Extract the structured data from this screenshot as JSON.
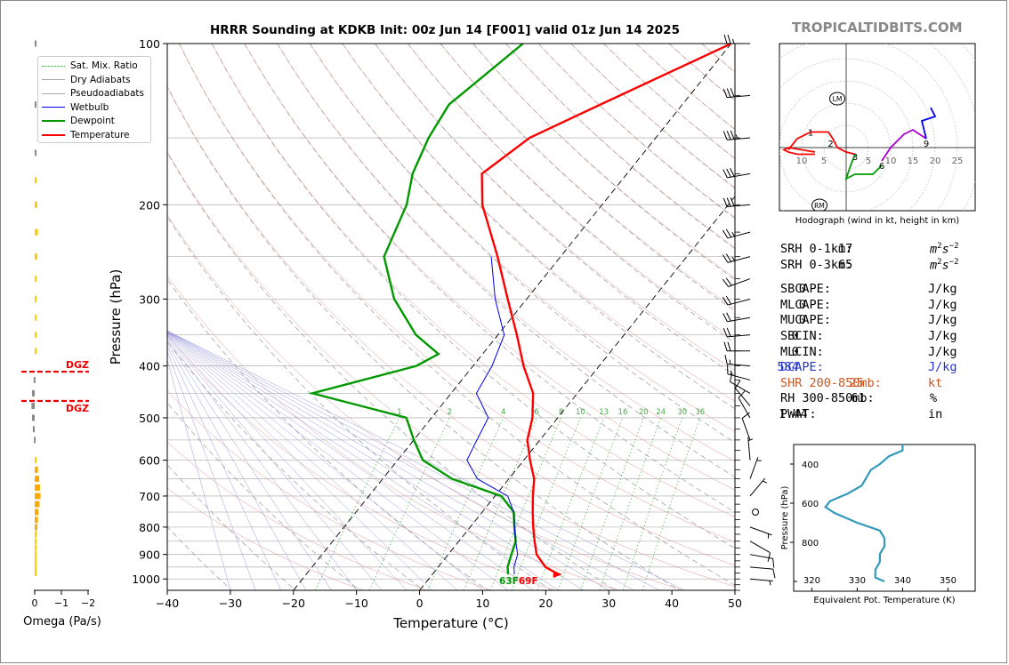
{
  "title": "HRRR Sounding at KDKB Init: 00z Jun 14 [F001] valid 01z Jun 14 2025",
  "brand": "TROPICALTIDBITS.COM",
  "chart_data": [
    {
      "type": "line",
      "name": "skewt",
      "xlabel": "Temperature (°C)",
      "ylabel": "Pressure (hPa)",
      "xlim": [
        -40,
        50
      ],
      "ylim": [
        1050,
        100
      ],
      "y_scale": "log",
      "skew": true,
      "x_ticks": [
        -40,
        -30,
        -20,
        -10,
        0,
        10,
        20,
        30,
        40,
        50
      ],
      "x_tick_labels": [
        "−40",
        "−30",
        "−20",
        "−10",
        "0",
        "10",
        "20",
        "30",
        "40",
        "50"
      ],
      "y_ticks": [
        100,
        200,
        300,
        400,
        500,
        600,
        700,
        800,
        900,
        1000
      ],
      "legend": [
        "Sat. Mix. Ratio",
        "Dry Adiabats",
        "Pseudoadiabats",
        "Wetbulb",
        "Dewpoint",
        "Temperature"
      ],
      "legend_position": "upper-left",
      "mixing_ratio_labels": [
        "1",
        "2",
        "4",
        "6",
        "8",
        "10",
        "13",
        "16",
        "20",
        "24",
        "30",
        "36"
      ],
      "surface_label": "63F69F",
      "series": [
        {
          "name": "Temperature",
          "color": "#ff0000",
          "points": [
            [
              100,
              -20
            ],
            [
              130,
              -33
            ],
            [
              150,
              -40
            ],
            [
              175,
              -43
            ],
            [
              200,
              -39
            ],
            [
              250,
              -30
            ],
            [
              300,
              -23
            ],
            [
              350,
              -17
            ],
            [
              400,
              -12
            ],
            [
              450,
              -7
            ],
            [
              500,
              -4
            ],
            [
              550,
              -2
            ],
            [
              600,
              1
            ],
            [
              650,
              4
            ],
            [
              700,
              6
            ],
            [
              750,
              8
            ],
            [
              800,
              10
            ],
            [
              850,
              12
            ],
            [
              900,
              14
            ],
            [
              950,
              17
            ],
            [
              980,
              20
            ]
          ]
        },
        {
          "name": "Dewpoint",
          "color": "#009900",
          "points": [
            [
              100,
              -53
            ],
            [
              130,
              -57
            ],
            [
              150,
              -56
            ],
            [
              175,
              -54
            ],
            [
              200,
              -51
            ],
            [
              250,
              -48
            ],
            [
              300,
              -41
            ],
            [
              350,
              -33
            ],
            [
              380,
              -27
            ],
            [
              400,
              -29
            ],
            [
              450,
              -42
            ],
            [
              500,
              -24
            ],
            [
              550,
              -20
            ],
            [
              600,
              -16
            ],
            [
              650,
              -9
            ],
            [
              700,
              1
            ],
            [
              750,
              5
            ],
            [
              800,
              7
            ],
            [
              850,
              9
            ],
            [
              900,
              10
            ],
            [
              950,
              11
            ],
            [
              980,
              12
            ]
          ]
        },
        {
          "name": "Wetbulb",
          "color": "#0000ee",
          "points": [
            [
              250,
              -31
            ],
            [
              300,
              -25
            ],
            [
              350,
              -19
            ],
            [
              400,
              -17
            ],
            [
              450,
              -16
            ],
            [
              500,
              -11
            ],
            [
              550,
              -10
            ],
            [
              600,
              -9
            ],
            [
              650,
              -5
            ],
            [
              700,
              2
            ],
            [
              750,
              5
            ],
            [
              800,
              7
            ],
            [
              850,
              9
            ],
            [
              900,
              11
            ],
            [
              950,
              12
            ],
            [
              980,
              13
            ]
          ]
        }
      ]
    },
    {
      "type": "bar",
      "name": "omega",
      "xlabel": "Omega (Pa/s)",
      "x_ticks": [
        0,
        -1,
        -2
      ],
      "x_tick_labels": [
        "0",
        "−1",
        "−2"
      ],
      "dgz_label": "DGZ",
      "dgz": [
        410,
        465
      ],
      "bars": [
        {
          "p": 100,
          "omega": -0.03,
          "color": "#888888"
        },
        {
          "p": 130,
          "omega": -0.05,
          "color": "#888888"
        },
        {
          "p": 160,
          "omega": -0.05,
          "color": "#888888"
        },
        {
          "p": 180,
          "omega": -0.02,
          "color": "#ffcc00"
        },
        {
          "p": 200,
          "omega": -0.1,
          "color": "#ffcc00"
        },
        {
          "p": 225,
          "omega": -0.12,
          "color": "#ffcc00"
        },
        {
          "p": 250,
          "omega": -0.1,
          "color": "#ffcc00"
        },
        {
          "p": 275,
          "omega": -0.07,
          "color": "#ffcc00"
        },
        {
          "p": 300,
          "omega": -0.04,
          "color": "#ffcc00"
        },
        {
          "p": 325,
          "omega": -0.02,
          "color": "#ffcc00"
        },
        {
          "p": 350,
          "omega": -0.03,
          "color": "#ffcc00"
        },
        {
          "p": 375,
          "omega": -0.05,
          "color": "#ffcc00"
        },
        {
          "p": 425,
          "omega": 0.04,
          "color": "#888888"
        },
        {
          "p": 450,
          "omega": 0.1,
          "color": "#888888"
        },
        {
          "p": 475,
          "omega": 0.12,
          "color": "#888888"
        },
        {
          "p": 500,
          "omega": 0.1,
          "color": "#888888"
        },
        {
          "p": 525,
          "omega": 0.07,
          "color": "#888888"
        },
        {
          "p": 550,
          "omega": 0.03,
          "color": "#888888"
        },
        {
          "p": 600,
          "omega": -0.06,
          "color": "#ffcc00"
        },
        {
          "p": 625,
          "omega": -0.12,
          "color": "#ffaa00"
        },
        {
          "p": 650,
          "omega": -0.17,
          "color": "#ffaa00"
        },
        {
          "p": 675,
          "omega": -0.2,
          "color": "#ffaa00"
        },
        {
          "p": 700,
          "omega": -0.22,
          "color": "#ffaa00"
        },
        {
          "p": 725,
          "omega": -0.18,
          "color": "#ffaa00"
        },
        {
          "p": 750,
          "omega": -0.14,
          "color": "#ffaa00"
        },
        {
          "p": 775,
          "omega": -0.12,
          "color": "#ffaa00"
        },
        {
          "p": 800,
          "omega": -0.1,
          "color": "#ffaa00"
        },
        {
          "p": 825,
          "omega": -0.08,
          "color": "#ffcc00"
        },
        {
          "p": 850,
          "omega": -0.07,
          "color": "#ffcc00"
        },
        {
          "p": 875,
          "omega": -0.05,
          "color": "#ffcc00"
        },
        {
          "p": 900,
          "omega": -0.04,
          "color": "#ffcc00"
        },
        {
          "p": 925,
          "omega": -0.03,
          "color": "#ffcc00"
        },
        {
          "p": 950,
          "omega": -0.02,
          "color": "#ffcc00"
        },
        {
          "p": 975,
          "omega": -0.01,
          "color": "#ffcc00"
        }
      ]
    },
    {
      "type": "line",
      "name": "hodograph",
      "xlabel": "Hodograph (wind in kt, height in km)",
      "ring_labels": [
        "10",
        "5",
        "5",
        "10",
        "15",
        "20",
        "25"
      ],
      "storm_motion_labels": [
        "LM",
        "RM"
      ],
      "storm_motion": {
        "LM": [
          -2,
          11
        ],
        "RM": [
          -6,
          -13
        ]
      },
      "height_labels": [
        {
          "km": "1",
          "u": -8,
          "v": 3.5
        },
        {
          "km": "2",
          "u": -3.5,
          "v": 1
        },
        {
          "km": "3",
          "u": 2,
          "v": -2
        },
        {
          "km": "6",
          "u": 8,
          "v": -4
        },
        {
          "km": "9",
          "u": 18,
          "v": 1
        }
      ],
      "segments": [
        {
          "color": "#ff0000",
          "points": [
            [
              -7,
              -1
            ],
            [
              -13,
              0
            ],
            [
              -14,
              -0.5
            ],
            [
              -13,
              -1
            ],
            [
              -11,
              -1.5
            ],
            [
              -7,
              -1.5
            ]
          ]
        },
        {
          "color": "#ff0000",
          "points": [
            [
              -13,
              -0.5
            ],
            [
              -11,
              2
            ],
            [
              -8,
              3.5
            ],
            [
              -4,
              3.5
            ],
            [
              -3,
              2
            ],
            [
              -2,
              0
            ],
            [
              0,
              -1
            ],
            [
              2,
              -1.5
            ]
          ]
        },
        {
          "color": "#009900",
          "points": [
            [
              2,
              -1.5
            ],
            [
              1,
              -4
            ],
            [
              0,
              -7
            ],
            [
              2,
              -6
            ],
            [
              6,
              -6
            ],
            [
              8,
              -4
            ]
          ]
        },
        {
          "color": "#aa00cc",
          "points": [
            [
              8,
              -3
            ],
            [
              10,
              0
            ],
            [
              13,
              3
            ],
            [
              15,
              4
            ],
            [
              18,
              2
            ]
          ]
        },
        {
          "color": "#0000ee",
          "points": [
            [
              18,
              2
            ],
            [
              17,
              6
            ],
            [
              20,
              7
            ],
            [
              19,
              9
            ]
          ]
        }
      ]
    },
    {
      "type": "line",
      "name": "theta_e",
      "xlabel": "Equivalent Pot. Temperature (K)",
      "ylabel": "Pressure (hPa)",
      "x_ticks": [
        320,
        330,
        340,
        350
      ],
      "y_ticks": [
        400,
        600,
        800
      ],
      "xlim": [
        316,
        356
      ],
      "ylim": [
        1050,
        300
      ],
      "color": "#3399bb",
      "points": [
        [
          300,
          340
        ],
        [
          330,
          340
        ],
        [
          360,
          337
        ],
        [
          400,
          335
        ],
        [
          430,
          333
        ],
        [
          470,
          332
        ],
        [
          510,
          331
        ],
        [
          550,
          328
        ],
        [
          590,
          324
        ],
        [
          620,
          323
        ],
        [
          650,
          325
        ],
        [
          700,
          330
        ],
        [
          740,
          335
        ],
        [
          780,
          336
        ],
        [
          820,
          336
        ],
        [
          860,
          335
        ],
        [
          900,
          335
        ],
        [
          940,
          334
        ],
        [
          980,
          334
        ],
        [
          1000,
          336
        ]
      ]
    }
  ],
  "wind_barbs": [
    {
      "p": 100,
      "speed": 25,
      "dir": 270
    },
    {
      "p": 125,
      "speed": 30,
      "dir": 265
    },
    {
      "p": 150,
      "speed": 35,
      "dir": 265
    },
    {
      "p": 175,
      "speed": 30,
      "dir": 260
    },
    {
      "p": 200,
      "speed": 30,
      "dir": 265
    },
    {
      "p": 225,
      "speed": 25,
      "dir": 255
    },
    {
      "p": 250,
      "speed": 25,
      "dir": 255
    },
    {
      "p": 275,
      "speed": 20,
      "dir": 250
    },
    {
      "p": 300,
      "speed": 20,
      "dir": 255
    },
    {
      "p": 325,
      "speed": 20,
      "dir": 260
    },
    {
      "p": 350,
      "speed": 20,
      "dir": 265
    },
    {
      "p": 375,
      "speed": 20,
      "dir": 270
    },
    {
      "p": 400,
      "speed": 15,
      "dir": 275
    },
    {
      "p": 425,
      "speed": 15,
      "dir": 285
    },
    {
      "p": 450,
      "speed": 10,
      "dir": 300
    },
    {
      "p": 475,
      "speed": 10,
      "dir": 320
    },
    {
      "p": 500,
      "speed": 10,
      "dir": 330
    },
    {
      "p": 550,
      "speed": 10,
      "dir": 340
    },
    {
      "p": 600,
      "speed": 5,
      "dir": 355
    },
    {
      "p": 650,
      "speed": 5,
      "dir": 20
    },
    {
      "p": 700,
      "speed": 5,
      "dir": 40
    },
    {
      "p": 750,
      "speed": 0,
      "dir": 0
    },
    {
      "p": 800,
      "speed": 5,
      "dir": 110
    },
    {
      "p": 850,
      "speed": 10,
      "dir": 120
    },
    {
      "p": 900,
      "speed": 10,
      "dir": 100
    },
    {
      "p": 950,
      "speed": 10,
      "dir": 95
    },
    {
      "p": 1000,
      "speed": 5,
      "dir": 95
    }
  ],
  "indices": [
    {
      "label": "SRH 0-1km:",
      "value": "17",
      "unit": "m2s-2",
      "color": "#000000"
    },
    {
      "label": "SRH 0-3km:",
      "value": "65",
      "unit": "m2s-2",
      "color": "#000000"
    },
    {
      "label": "SBCAPE:",
      "value": "0",
      "unit": "J/kg",
      "color": "#000000"
    },
    {
      "label": "MLCAPE:",
      "value": "0",
      "unit": "J/kg",
      "color": "#000000"
    },
    {
      "label": "MUCAPE:",
      "value": "0",
      "unit": "J/kg",
      "color": "#000000"
    },
    {
      "label": "SBCIN:",
      "value": "0",
      "unit": "J/kg",
      "color": "#000000"
    },
    {
      "label": "MLCIN:",
      "value": "0",
      "unit": "J/kg",
      "color": "#000000"
    },
    {
      "label": "DCAPE:",
      "value": "584",
      "unit": "J/kg",
      "color": "#2233cc"
    },
    {
      "label": "SHR 200-850mb:",
      "value": "25",
      "unit": "kt",
      "color": "#cc5522"
    },
    {
      "label": "RH 300-850mb:",
      "value": "61",
      "unit": "%",
      "color": "#000000"
    },
    {
      "label": "PWAT:",
      "value": "1.44",
      "unit": "in",
      "color": "#000000"
    }
  ]
}
